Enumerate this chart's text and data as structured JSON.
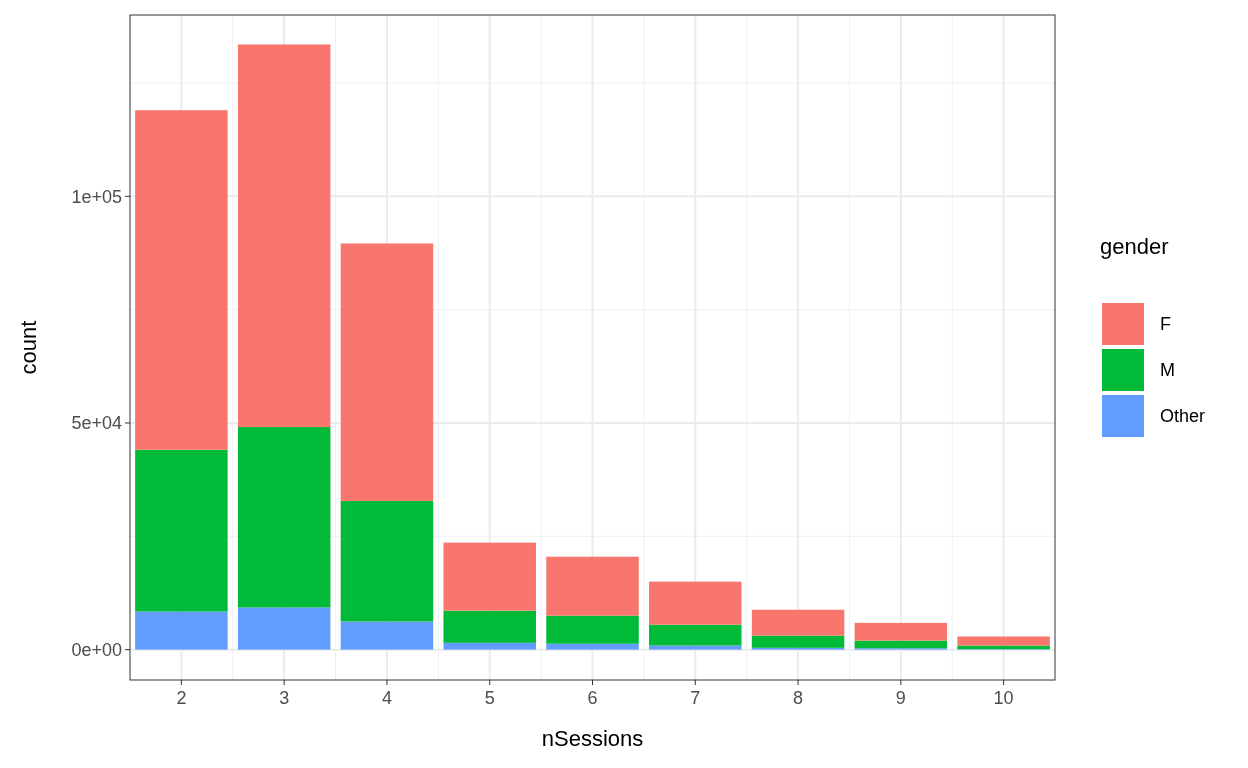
{
  "chart_data": {
    "type": "bar",
    "stacked": true,
    "xlabel": "nSessions",
    "ylabel": "count",
    "legend_title": "gender",
    "legend": "right",
    "grid": true,
    "categories": [
      "2",
      "3",
      "4",
      "5",
      "6",
      "7",
      "8",
      "9",
      "10"
    ],
    "ylim": [
      -6700,
      140000
    ],
    "yticks": [
      {
        "value": 0,
        "label": "0e+00"
      },
      {
        "value": 50000,
        "label": "5e+04"
      },
      {
        "value": 100000,
        "label": "1e+05"
      }
    ],
    "series": [
      {
        "name": "Other",
        "color": "#619cff",
        "values": [
          8400,
          9300,
          6200,
          1500,
          1300,
          900,
          400,
          300,
          100
        ]
      },
      {
        "name": "M",
        "color": "#00ba38",
        "values": [
          35700,
          39800,
          26600,
          7100,
          6200,
          4600,
          2700,
          1700,
          800
        ]
      },
      {
        "name": "F",
        "color": "#f8766d",
        "values": [
          74900,
          84400,
          56800,
          15000,
          13000,
          9500,
          5700,
          3900,
          2000
        ]
      }
    ]
  }
}
